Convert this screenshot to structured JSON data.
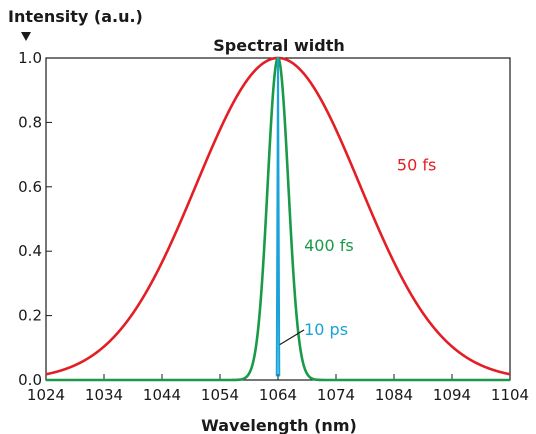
{
  "chart_data": {
    "type": "line",
    "title": "Spectral width",
    "xlabel": "Wavelength (nm)",
    "ylabel": "Intensity (a.u.)",
    "xlim": [
      1024,
      1104
    ],
    "ylim": [
      0,
      1.0
    ],
    "x_ticks": [
      "1024",
      "1034",
      "1044",
      "1054",
      "1064",
      "1074",
      "1084",
      "1094",
      "1104"
    ],
    "y_ticks": [
      "0.0",
      "0.2",
      "0.4",
      "0.6",
      "0.8",
      "1.0"
    ],
    "grid": false,
    "y_axis_arrow": true,
    "series": [
      {
        "name": "50 fs",
        "color": "#e31e24",
        "shape": "gaussian",
        "center": 1064,
        "fwhm": 33.2,
        "x": [
          1024,
          1034,
          1044,
          1054,
          1064,
          1074,
          1084,
          1094,
          1104
        ],
        "values": [
          0.02,
          0.1,
          0.36,
          0.78,
          1.0,
          0.78,
          0.36,
          0.1,
          0.02
        ]
      },
      {
        "name": "400 fs",
        "color": "#1a9a48",
        "shape": "gaussian",
        "center": 1064,
        "fwhm": 4.2,
        "x": [
          1058,
          1060,
          1062,
          1064,
          1066,
          1068,
          1070
        ],
        "values": [
          0.01,
          0.11,
          0.63,
          1.0,
          0.63,
          0.11,
          0.01
        ]
      },
      {
        "name": "10 ps",
        "color": "#1aa3d9",
        "shape": "gaussian",
        "center": 1064,
        "fwhm": 0.17,
        "x": [
          1063.8,
          1064,
          1064.2
        ],
        "values": [
          0.0,
          1.0,
          0.0
        ]
      }
    ],
    "annotations": [
      {
        "text": "50 fs",
        "color": "#e31e24",
        "x": 1084.5,
        "y": 0.65
      },
      {
        "text": "400 fs",
        "color": "#1a9a48",
        "x": 1068.5,
        "y": 0.4
      },
      {
        "text": "10 ps",
        "color": "#1aa3d9",
        "x": 1068.5,
        "y": 0.14,
        "leader_to": [
          1064.3,
          0.11
        ]
      }
    ]
  }
}
